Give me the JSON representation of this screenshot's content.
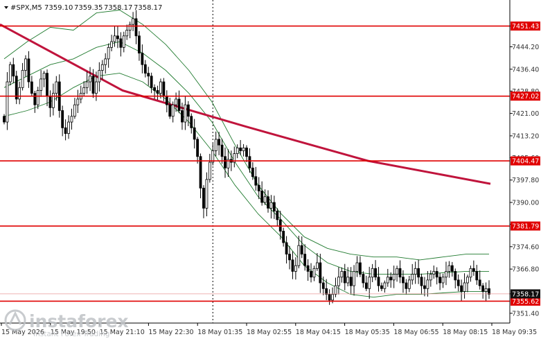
{
  "chart_data": {
    "type": "candlestick",
    "symbol": "#SPX,M5",
    "ohlc_readout": {
      "open": "7359.10",
      "high": "7359.35",
      "low": "7358.17",
      "close": "7358.17"
    },
    "ylim": [
      7348.0,
      7460.5
    ],
    "y_ticks": [
      {
        "value": 7451.43,
        "label": "7451.43"
      },
      {
        "value": 7444.2,
        "label": "7444.20"
      },
      {
        "value": 7436.4,
        "label": "7436.40"
      },
      {
        "value": 7428.8,
        "label": "7428.80"
      },
      {
        "value": 7421.0,
        "label": "7421.00"
      },
      {
        "value": 7413.2,
        "label": "7413.20"
      },
      {
        "value": 7405.6,
        "label": "7405.60"
      },
      {
        "value": 7397.8,
        "label": "7397.80"
      },
      {
        "value": 7390.0,
        "label": "7390.00"
      },
      {
        "value": 7382.4,
        "label": "7382.40"
      },
      {
        "value": 7374.6,
        "label": "7374.60"
      },
      {
        "value": 7366.8,
        "label": "7366.80"
      },
      {
        "value": 7358.17,
        "label": "7358.17"
      },
      {
        "value": 7351.4,
        "label": "7351.40"
      }
    ],
    "x_ticks": [
      "15 May 2026",
      "15 May 19:50",
      "15 May 21:10",
      "15 May 22:30",
      "18 May 01:35",
      "18 May 02:55",
      "18 May 04:15",
      "18 May 05:35",
      "18 May 06:55",
      "18 May 08:15",
      "18 May 09:35"
    ],
    "levels": [
      {
        "value": 7451.43,
        "label": "7451.43"
      },
      {
        "value": 7427.02,
        "label": "7427.02"
      },
      {
        "value": 7404.47,
        "label": "7404.47"
      },
      {
        "value": 7381.79,
        "label": "7381.79"
      },
      {
        "value": 7355.62,
        "label": "7355.62"
      }
    ],
    "current_price": {
      "value": 7358.17,
      "label": "7358.17"
    },
    "separator_index": 68,
    "closes": [
      7418,
      7432,
      7438,
      7434,
      7426,
      7430,
      7436,
      7440,
      7432,
      7428,
      7424,
      7429,
      7433,
      7435,
      7427,
      7423,
      7428,
      7432,
      7422,
      7416,
      7414,
      7418,
      7420,
      7424,
      7426,
      7428,
      7430,
      7432,
      7434,
      7428,
      7432,
      7436,
      7438,
      7440,
      7444,
      7446,
      7448,
      7447,
      7444,
      7448,
      7450,
      7452,
      7454,
      7448,
      7442,
      7438,
      7435,
      7434,
      7430,
      7429,
      7428,
      7432,
      7427,
      7424,
      7420,
      7424,
      7426,
      7422,
      7418,
      7424,
      7420,
      7416,
      7412,
      7406,
      7395,
      7388,
      7398,
      7404,
      7408,
      7412,
      7410,
      7406,
      7402,
      7405,
      7404,
      7407,
      7409,
      7408,
      7409,
      7406,
      7402,
      7399,
      7396,
      7394,
      7390,
      7392,
      7388,
      7390,
      7387,
      7384,
      7380,
      7376,
      7372,
      7370,
      7366,
      7368,
      7375,
      7372,
      7368,
      7366,
      7364,
      7367,
      7369,
      7362,
      7360,
      7358,
      7356,
      7358,
      7361,
      7364,
      7366,
      7362,
      7364,
      7361,
      7366,
      7369,
      7365,
      7362,
      7360,
      7364,
      7367,
      7364,
      7361,
      7360,
      7362,
      7364,
      7363,
      7365,
      7367,
      7364,
      7362,
      7360,
      7363,
      7365,
      7367,
      7364,
      7361,
      7360,
      7363,
      7365,
      7366,
      7364,
      7362,
      7364,
      7366,
      7368,
      7366,
      7363,
      7361,
      7359,
      7362,
      7364,
      7367,
      7366,
      7363,
      7361,
      7359,
      7360,
      7358
    ],
    "ema_slow": [
      7452,
      7429,
      7416.5,
      7404.5,
      7396.5
    ],
    "bands": {
      "upper": [
        7440,
        7446,
        7451,
        7450,
        7456,
        7457,
        7452,
        7445,
        7436,
        7425,
        7410,
        7396,
        7386,
        7378,
        7374,
        7372,
        7371,
        7371,
        7370,
        7371,
        7372,
        7372
      ],
      "middle": [
        7430,
        7434,
        7438,
        7440,
        7444,
        7446,
        7442,
        7436,
        7428,
        7418,
        7404,
        7392,
        7384,
        7375,
        7369,
        7366,
        7365,
        7365,
        7365,
        7365.5,
        7366,
        7366
      ],
      "lower": [
        7420,
        7422,
        7425,
        7430,
        7434,
        7435,
        7432,
        7426,
        7418,
        7408,
        7396,
        7386,
        7378,
        7368,
        7362,
        7358,
        7357,
        7358,
        7358,
        7358.5,
        7359,
        7359
      ]
    },
    "watermark": {
      "brand": "instaforex",
      "tagline": "Instant Forex Trading"
    },
    "colors": {
      "background": "#ffffff",
      "candle": "#000000",
      "level": "#e00000",
      "level_tag": "#e00000",
      "ema": "#c0143c",
      "bands": "#1f7a2e",
      "current_tag": "#111111",
      "watermark": "#bfc2c6"
    }
  }
}
